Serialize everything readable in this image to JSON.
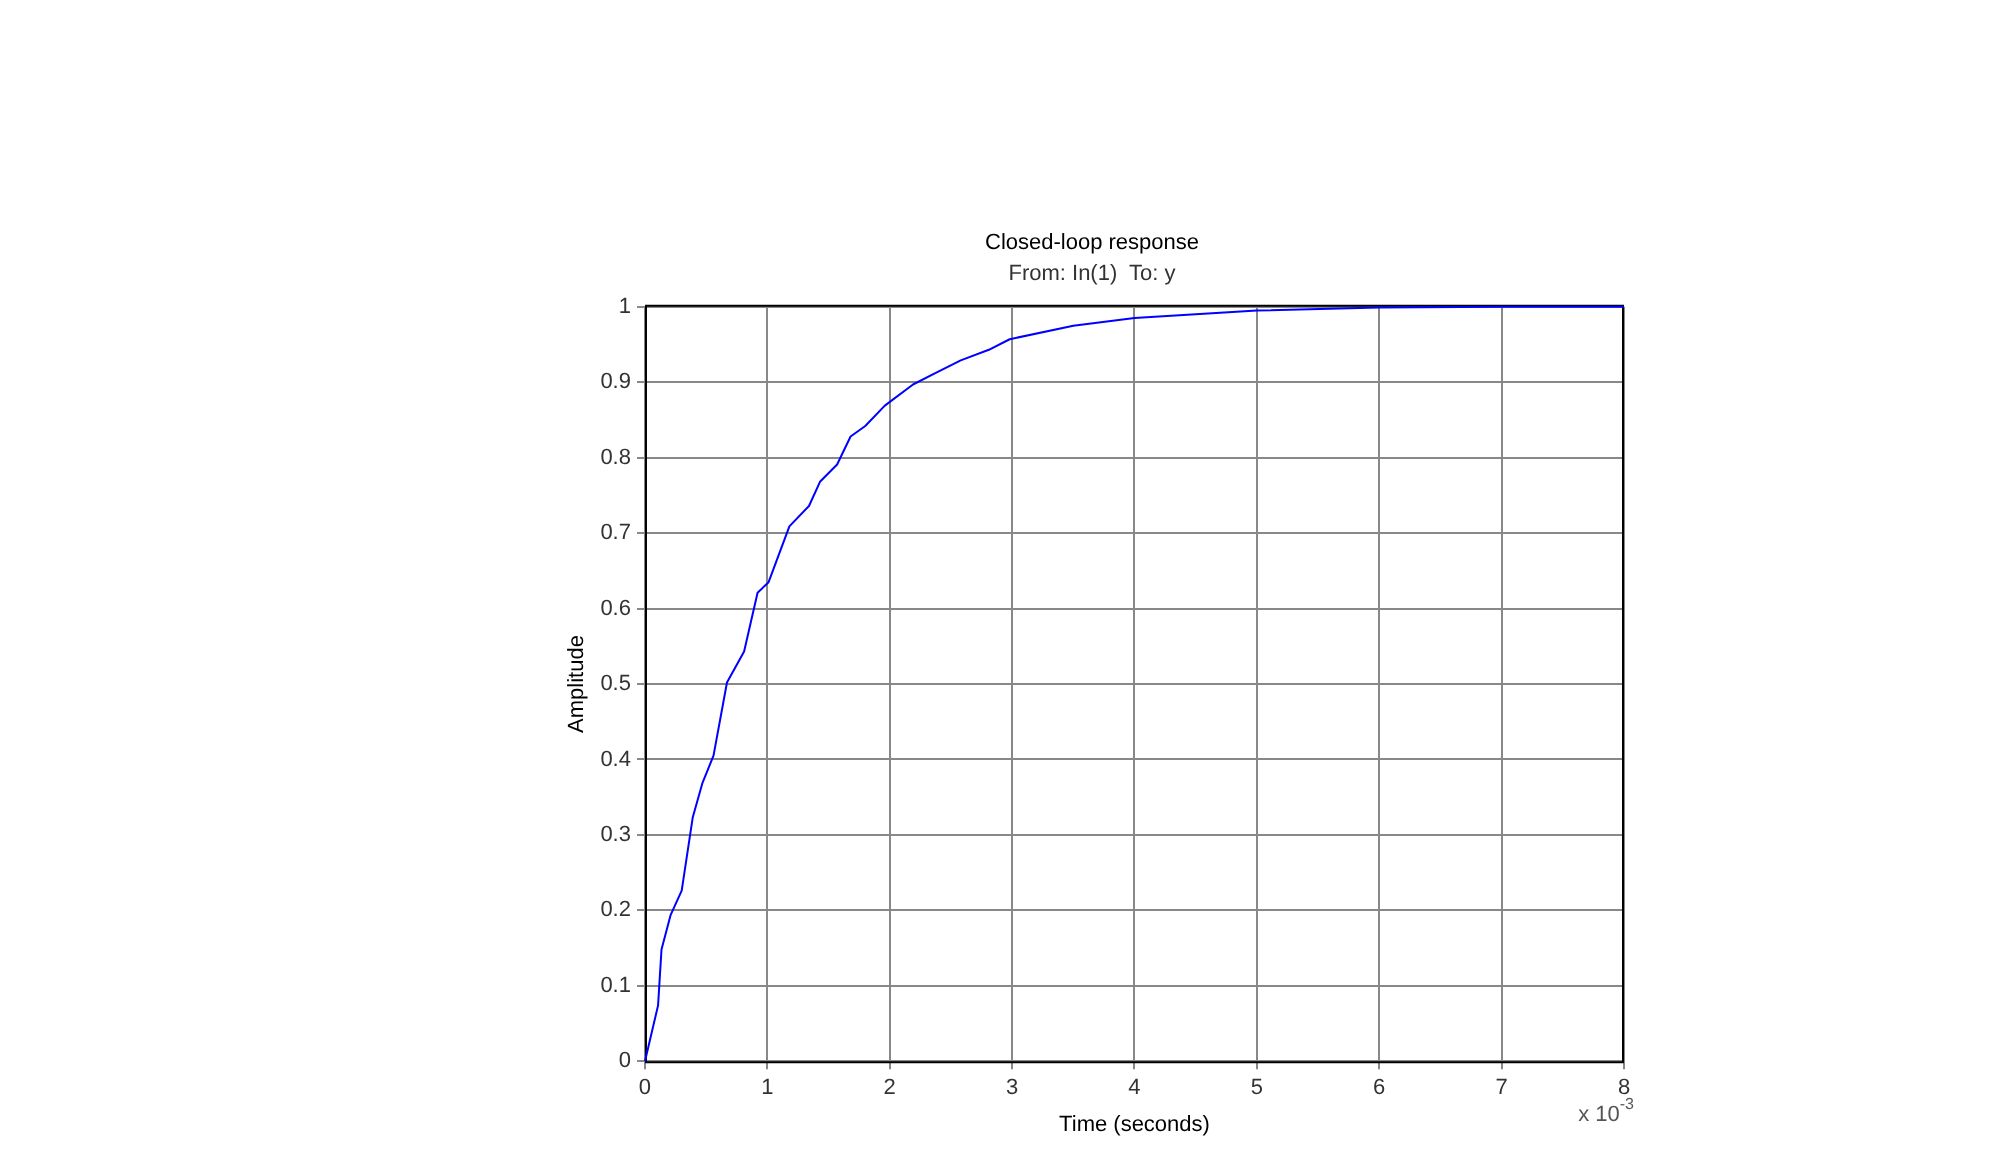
{
  "chart_data": {
    "type": "line",
    "title": "Closed-loop response",
    "subtitle": "From: In(1)  To: y",
    "xlabel": "Time (seconds)",
    "ylabel": "Amplitude",
    "annotations": [
      "x 10$^{-3}$"
    ],
    "x": [
      0,
      0.107,
      0.135,
      0.21,
      0.3,
      0.39,
      0.47,
      0.56,
      0.67,
      0.81,
      0.92,
      1.01,
      1.18,
      1.34,
      1.43,
      1.57,
      1.68,
      1.8,
      1.96,
      2.19,
      2.36,
      2.58,
      2.81,
      2.98,
      3.5,
      4,
      4.5,
      5,
      6,
      7,
      8
    ],
    "series": [
      {
        "color": "#0000ff",
        "values": [
          0,
          0.074,
          0.148,
          0.194,
          0.226,
          0.323,
          0.369,
          0.405,
          0.502,
          0.543,
          0.621,
          0.635,
          0.709,
          0.736,
          0.768,
          0.791,
          0.828,
          0.842,
          0.869,
          0.897,
          0.911,
          0.929,
          0.943,
          0.957,
          0.975,
          0.985,
          0.99,
          0.995,
          0.999,
          1,
          1
        ]
      }
    ],
    "xlim": [
      0,
      8
    ],
    "xticks": [
      0,
      1,
      2,
      3,
      4,
      5,
      6,
      7,
      8
    ],
    "ylim": [
      0,
      1
    ],
    "yticks": [
      0,
      0.1,
      0.2,
      0.3,
      0.4,
      0.5,
      0.6,
      0.7,
      0.8,
      0.9,
      1
    ],
    "grid": true,
    "legend": false,
    "marker": "none",
    "line_style": "solid"
  }
}
